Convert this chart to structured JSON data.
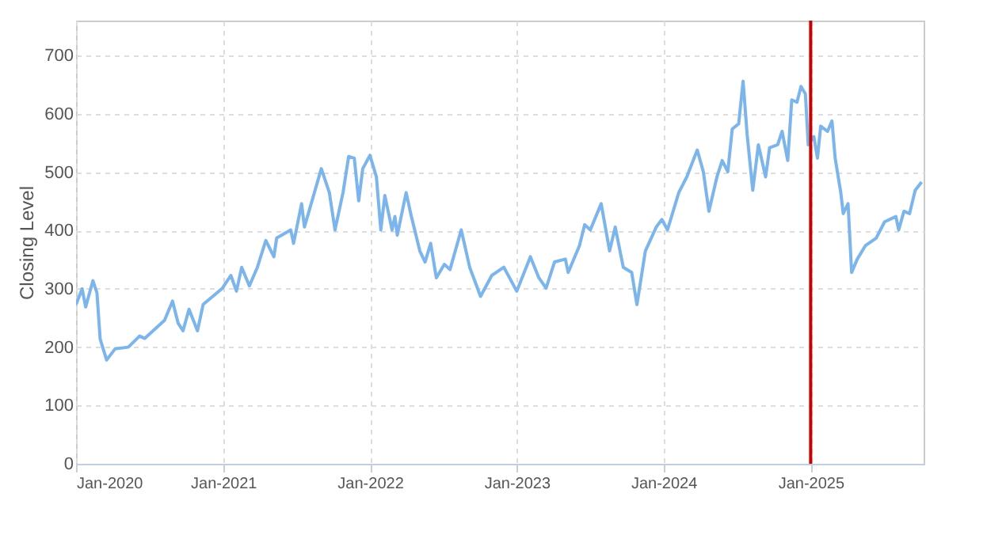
{
  "chart_data": {
    "type": "line",
    "ylabel": "Closing Level",
    "x": [
      "2020-01-01",
      "2020-01-16",
      "2020-01-25",
      "2020-02-12",
      "2020-02-22",
      "2020-03-01",
      "2020-03-17",
      "2020-04-07",
      "2020-05-10",
      "2020-06-07",
      "2020-06-20",
      "2020-08-08",
      "2020-08-28",
      "2020-09-11",
      "2020-09-23",
      "2020-10-08",
      "2020-10-29",
      "2020-11-12",
      "2020-12-30",
      "2021-01-20",
      "2021-02-03",
      "2021-02-16",
      "2021-03-07",
      "2021-03-27",
      "2021-04-17",
      "2021-05-07",
      "2021-05-14",
      "2021-06-18",
      "2021-06-25",
      "2021-07-15",
      "2021-07-22",
      "2021-09-02",
      "2021-09-22",
      "2021-10-06",
      "2021-10-26",
      "2021-11-09",
      "2021-11-23",
      "2021-12-04",
      "2021-12-14",
      "2022-01-01",
      "2022-01-17",
      "2022-01-28",
      "2022-02-07",
      "2022-02-25",
      "2022-03-04",
      "2022-03-10",
      "2022-04-01",
      "2022-04-14",
      "2022-05-05",
      "2022-05-18",
      "2022-06-01",
      "2022-06-15",
      "2022-07-05",
      "2022-07-19",
      "2022-08-16",
      "2022-09-06",
      "2022-10-03",
      "2022-10-31",
      "2022-11-30",
      "2023-01-01",
      "2023-02-04",
      "2023-02-25",
      "2023-03-15",
      "2023-04-05",
      "2023-05-02",
      "2023-05-09",
      "2023-06-06",
      "2023-06-19",
      "2023-07-03",
      "2023-07-30",
      "2023-08-20",
      "2023-09-03",
      "2023-09-23",
      "2023-10-14",
      "2023-10-27",
      "2023-11-17",
      "2023-12-14",
      "2023-12-28",
      "2024-01-11",
      "2024-02-08",
      "2024-02-28",
      "2024-03-25",
      "2024-04-09",
      "2024-04-23",
      "2024-05-13",
      "2024-05-26",
      "2024-06-09",
      "2024-06-20",
      "2024-07-06",
      "2024-07-17",
      "2024-07-27",
      "2024-08-10",
      "2024-08-24",
      "2024-09-11",
      "2024-09-21",
      "2024-10-11",
      "2024-10-22",
      "2024-11-05",
      "2024-11-15",
      "2024-11-28",
      "2024-12-08",
      "2024-12-19",
      "2024-12-26",
      "2025-01-09",
      "2025-01-18",
      "2025-01-26",
      "2025-02-12",
      "2025-02-23",
      "2025-03-03",
      "2025-03-17",
      "2025-03-23",
      "2025-04-04",
      "2025-04-13",
      "2025-04-27",
      "2025-05-17",
      "2025-06-13",
      "2025-07-04",
      "2025-08-01",
      "2025-08-08",
      "2025-08-21",
      "2025-09-04",
      "2025-09-18",
      "2025-10-04"
    ],
    "series": [
      {
        "color": "#7cb5ec",
        "values": [
          273,
          300,
          269,
          314,
          293,
          214,
          178,
          197,
          200,
          219,
          215,
          246,
          279,
          241,
          228,
          265,
          228,
          273,
          301,
          323,
          296,
          337,
          305,
          337,
          383,
          355,
          387,
          401,
          378,
          446,
          406,
          506,
          465,
          401,
          465,
          527,
          524,
          451,
          506,
          529,
          492,
          401,
          460,
          401,
          424,
          392,
          465,
          424,
          365,
          346,
          378,
          319,
          342,
          333,
          401,
          337,
          287,
          323,
          337,
          296,
          355,
          319,
          301,
          346,
          351,
          328,
          374,
          410,
          401,
          446,
          365,
          406,
          337,
          328,
          273,
          365,
          406,
          419,
          401,
          465,
          492,
          538,
          501,
          433,
          492,
          520,
          501,
          574,
          583,
          656,
          565,
          469,
          547,
          492,
          542,
          547,
          570,
          520,
          624,
          620,
          647,
          634,
          547,
          561,
          524,
          579,
          570,
          588,
          524,
          465,
          429,
          446,
          328,
          351,
          374,
          387,
          415,
          424,
          401,
          433,
          429,
          469,
          483
        ]
      }
    ],
    "xlim": [
      "2020-01-01",
      "2025-10-09"
    ],
    "xticks": [
      {
        "value": "2020-01-01",
        "label": "Jan-2020"
      },
      {
        "value": "2021-01-01",
        "label": "Jan-2021"
      },
      {
        "value": "2022-01-01",
        "label": "Jan-2022"
      },
      {
        "value": "2023-01-01",
        "label": "Jan-2023"
      },
      {
        "value": "2024-01-01",
        "label": "Jan-2024"
      },
      {
        "value": "2025-01-01",
        "label": "Jan-2025"
      }
    ],
    "ylim": [
      0,
      760
    ],
    "yticks": [
      0,
      100,
      200,
      300,
      400,
      500,
      600,
      700
    ],
    "ref_lines": [
      {
        "axis": "x",
        "value": "2025-01-01",
        "color": "#cc0000"
      }
    ],
    "grid": true,
    "line_style": "solid",
    "marker": "none"
  }
}
